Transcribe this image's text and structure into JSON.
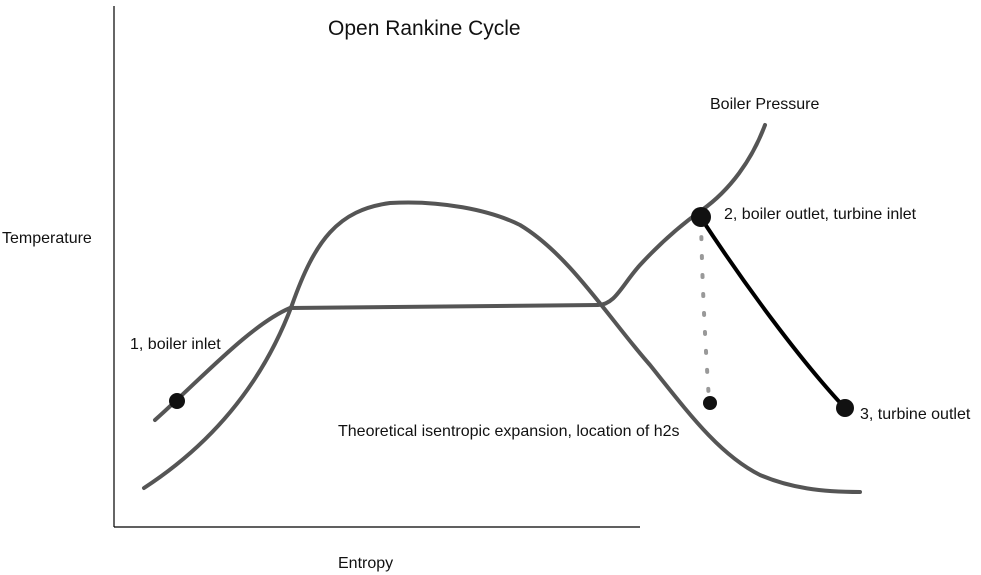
{
  "title": "Open Rankine Cycle",
  "axes": {
    "x_label": "Entropy",
    "y_label": "Temperature"
  },
  "curves": {
    "boiler_pressure": "Boiler Pressure"
  },
  "points": {
    "p1": "1, boiler inlet",
    "p2": "2, boiler outlet, turbine inlet",
    "p3": "3, turbine outlet",
    "p2s": "Theoretical isentropic expansion, location of h2s"
  },
  "colors": {
    "curve": "#555555",
    "expansion": "#000000",
    "isentropic": "#999999",
    "axis": "#000000"
  }
}
